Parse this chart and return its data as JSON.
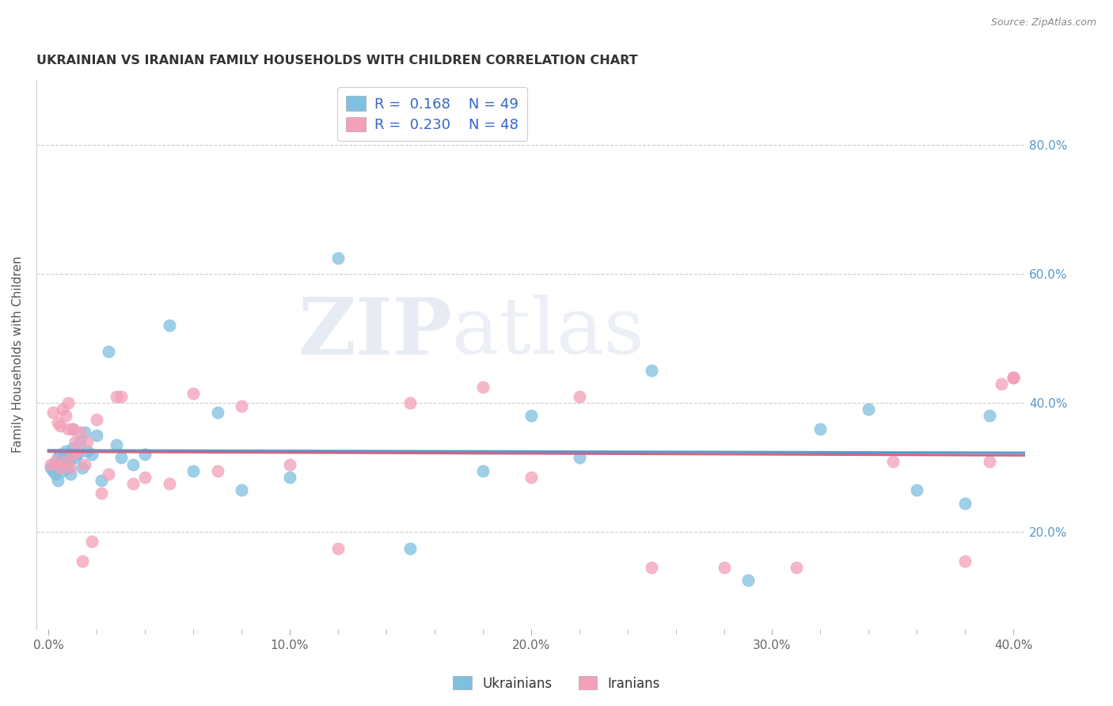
{
  "title": "UKRAINIAN VS IRANIAN FAMILY HOUSEHOLDS WITH CHILDREN CORRELATION CHART",
  "source": "Source: ZipAtlas.com",
  "ylabel": "Family Households with Children",
  "xlabel_ticks": [
    "0.0%",
    "",
    "",
    "",
    "",
    "10.0%",
    "",
    "",
    "",
    "",
    "20.0%",
    "",
    "",
    "",
    "",
    "30.0%",
    "",
    "",
    "",
    "",
    "40.0%"
  ],
  "xlabel_vals": [
    0.0,
    0.02,
    0.04,
    0.06,
    0.08,
    0.1,
    0.12,
    0.14,
    0.16,
    0.18,
    0.2,
    0.22,
    0.24,
    0.26,
    0.28,
    0.3,
    0.32,
    0.34,
    0.36,
    0.38,
    0.4
  ],
  "ylabel_ticks": [
    "20.0%",
    "40.0%",
    "60.0%",
    "80.0%"
  ],
  "ylabel_vals": [
    0.2,
    0.4,
    0.6,
    0.8
  ],
  "xlim": [
    -0.005,
    0.405
  ],
  "ylim": [
    0.05,
    0.9
  ],
  "color_ukr": "#7fbfdf",
  "color_ira": "#f4a0b8",
  "trendline_color_ukr": "#5599cc",
  "trendline_color_ira": "#cc6688",
  "watermark_zip": "ZIP",
  "watermark_atlas": "atlas",
  "scatter_ukr_x": [
    0.001,
    0.002,
    0.003,
    0.003,
    0.004,
    0.004,
    0.005,
    0.005,
    0.006,
    0.006,
    0.007,
    0.007,
    0.008,
    0.008,
    0.009,
    0.009,
    0.01,
    0.01,
    0.011,
    0.012,
    0.013,
    0.014,
    0.015,
    0.016,
    0.018,
    0.02,
    0.022,
    0.025,
    0.028,
    0.03,
    0.035,
    0.04,
    0.05,
    0.06,
    0.07,
    0.08,
    0.1,
    0.12,
    0.15,
    0.18,
    0.2,
    0.22,
    0.25,
    0.29,
    0.32,
    0.34,
    0.36,
    0.38,
    0.39
  ],
  "scatter_ukr_y": [
    0.3,
    0.295,
    0.29,
    0.305,
    0.315,
    0.28,
    0.305,
    0.32,
    0.31,
    0.295,
    0.325,
    0.315,
    0.3,
    0.31,
    0.29,
    0.315,
    0.33,
    0.36,
    0.315,
    0.32,
    0.34,
    0.3,
    0.355,
    0.325,
    0.32,
    0.35,
    0.28,
    0.48,
    0.335,
    0.315,
    0.305,
    0.32,
    0.52,
    0.295,
    0.385,
    0.265,
    0.285,
    0.625,
    0.175,
    0.295,
    0.38,
    0.315,
    0.45,
    0.125,
    0.36,
    0.39,
    0.265,
    0.245,
    0.38
  ],
  "scatter_ira_x": [
    0.001,
    0.002,
    0.003,
    0.004,
    0.005,
    0.005,
    0.006,
    0.007,
    0.007,
    0.008,
    0.008,
    0.009,
    0.01,
    0.01,
    0.011,
    0.012,
    0.013,
    0.014,
    0.015,
    0.016,
    0.018,
    0.02,
    0.022,
    0.025,
    0.028,
    0.03,
    0.035,
    0.04,
    0.05,
    0.06,
    0.07,
    0.08,
    0.1,
    0.12,
    0.15,
    0.18,
    0.2,
    0.22,
    0.25,
    0.28,
    0.31,
    0.35,
    0.38,
    0.39,
    0.395,
    0.4,
    0.4,
    0.4
  ],
  "scatter_ira_y": [
    0.305,
    0.385,
    0.31,
    0.37,
    0.3,
    0.365,
    0.39,
    0.31,
    0.38,
    0.4,
    0.36,
    0.3,
    0.32,
    0.36,
    0.34,
    0.325,
    0.355,
    0.155,
    0.305,
    0.34,
    0.185,
    0.375,
    0.26,
    0.29,
    0.41,
    0.41,
    0.275,
    0.285,
    0.275,
    0.415,
    0.295,
    0.395,
    0.305,
    0.175,
    0.4,
    0.425,
    0.285,
    0.41,
    0.145,
    0.145,
    0.145,
    0.31,
    0.155,
    0.31,
    0.43,
    0.44,
    0.44,
    0.44
  ]
}
